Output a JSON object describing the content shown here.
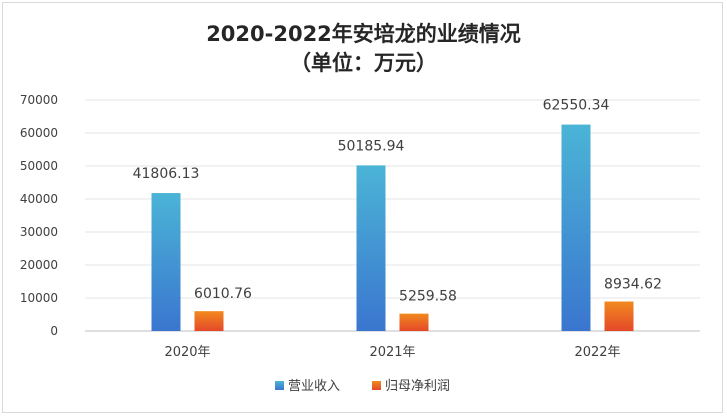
{
  "chart_data": {
    "type": "bar",
    "title": "2020-2022年安培龙的业绩情况",
    "subtitle": "（单位：万元）",
    "categories": [
      "2020年",
      "2021年",
      "2022年"
    ],
    "series": [
      {
        "name": "营业收入",
        "values": [
          41806.13,
          50185.94,
          62550.34
        ],
        "labels": [
          "41806.13",
          "50185.94",
          "62550.34"
        ]
      },
      {
        "name": "归母净利润",
        "values": [
          6010.76,
          5259.58,
          8934.62
        ],
        "labels": [
          "6010.76",
          "5259.58",
          "8934.62"
        ]
      }
    ],
    "ylim": [
      0,
      70000
    ],
    "yticks": [
      "0",
      "10000",
      "20000",
      "30000",
      "40000",
      "50000",
      "60000",
      "70000"
    ],
    "xlabel": "",
    "ylabel": "",
    "grid": true,
    "legend_position": "bottom"
  },
  "colors": {
    "revenue_top": "#4bb4d6",
    "revenue_bottom": "#3a76cf",
    "profit_top": "#f28a1e",
    "profit_bottom": "#e4482a",
    "grid": "#e4e4e4",
    "text": "#404040"
  }
}
